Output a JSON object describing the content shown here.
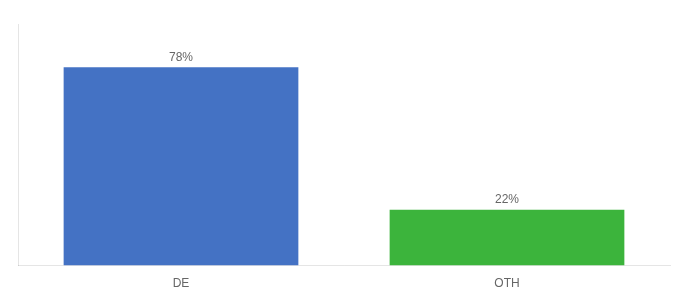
{
  "chart_data": {
    "type": "bar",
    "categories": [
      "DE",
      "OTH"
    ],
    "values": [
      78,
      22
    ],
    "value_labels": [
      "78%",
      "22%"
    ],
    "colors": [
      "#4472C4",
      "#3CB43C"
    ],
    "ylim": [
      0,
      95
    ],
    "grid": false,
    "data_labels": true,
    "tick_labels": "x"
  }
}
